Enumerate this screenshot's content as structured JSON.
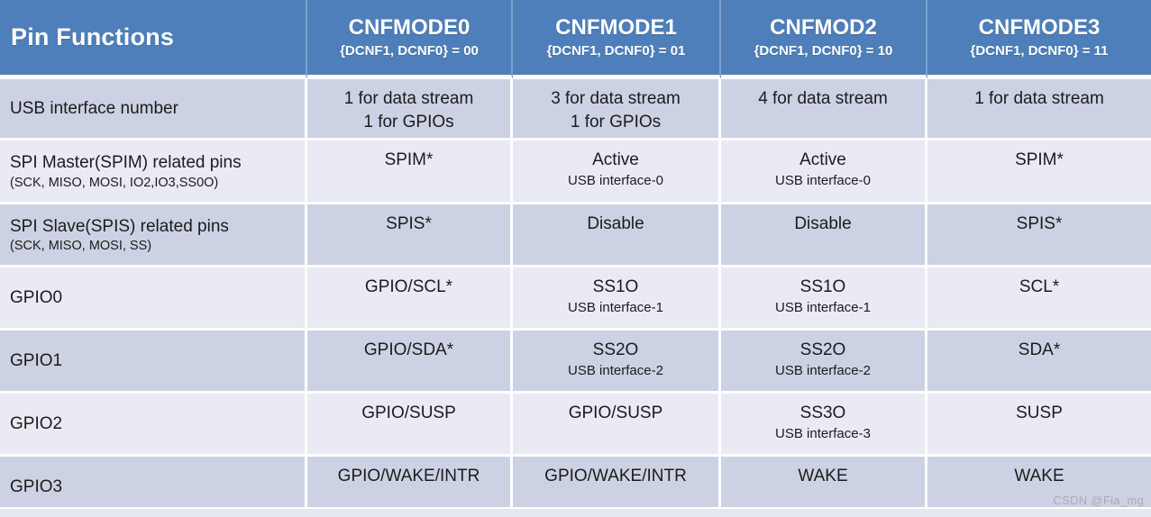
{
  "colors": {
    "header_bg": "#4e7fba",
    "header_text": "#ffffff",
    "header_divider": "#7fa0cc",
    "row_dark": "#ccd2e3",
    "row_light": "#e9eaf3",
    "body_text": "#1c1c1c",
    "separator": "#ffffff",
    "watermark_text": "#a6abb8"
  },
  "header": {
    "title": "Pin Functions",
    "modes": [
      {
        "name": "CNFMODE0",
        "condition": "{DCNF1, DCNF0} = 00"
      },
      {
        "name": "CNFMODE1",
        "condition": "{DCNF1, DCNF0} = 01"
      },
      {
        "name": "CNFMOD2",
        "condition": "{DCNF1, DCNF0} = 10"
      },
      {
        "name": "CNFMODE3",
        "condition": "{DCNF1, DCNF0} = 11"
      }
    ]
  },
  "rows": [
    {
      "label": "USB interface number",
      "cells": [
        {
          "main": "1 for data stream",
          "line2": "1 for GPIOs"
        },
        {
          "main": "3 for data stream",
          "line2": "1 for GPIOs"
        },
        {
          "main": "4 for data stream"
        },
        {
          "main": "1 for data stream"
        }
      ]
    },
    {
      "label": "SPI Master(SPIM) related pins",
      "sublabel": "(SCK, MISO, MOSI, IO2,IO3,SS0O)",
      "cells": [
        {
          "main": "SPIM*"
        },
        {
          "main": "Active",
          "sub": "USB interface-0"
        },
        {
          "main": "Active",
          "sub": "USB interface-0"
        },
        {
          "main": "SPIM*"
        }
      ]
    },
    {
      "label": "SPI Slave(SPIS) related pins",
      "sublabel": "(SCK, MISO, MOSI, SS)",
      "cells": [
        {
          "main": "SPIS*"
        },
        {
          "main": "Disable"
        },
        {
          "main": "Disable"
        },
        {
          "main": "SPIS*"
        }
      ]
    },
    {
      "label": "GPIO0",
      "cells": [
        {
          "main": "GPIO/SCL*"
        },
        {
          "main": "SS1O",
          "sub": "USB interface-1"
        },
        {
          "main": "SS1O",
          "sub": "USB interface-1"
        },
        {
          "main": "SCL*"
        }
      ]
    },
    {
      "label": "GPIO1",
      "cells": [
        {
          "main": "GPIO/SDA*"
        },
        {
          "main": "SS2O",
          "sub": "USB interface-2"
        },
        {
          "main": "SS2O",
          "sub": "USB interface-2"
        },
        {
          "main": "SDA*"
        }
      ]
    },
    {
      "label": "GPIO2",
      "cells": [
        {
          "main": "GPIO/SUSP"
        },
        {
          "main": "GPIO/SUSP"
        },
        {
          "main": "SS3O",
          "sub": "USB interface-3"
        },
        {
          "main": "SUSP"
        }
      ]
    },
    {
      "label": "GPIO3",
      "cells": [
        {
          "main": "GPIO/WAKE/INTR"
        },
        {
          "main": "GPIO/WAKE/INTR"
        },
        {
          "main": "WAKE"
        },
        {
          "main": "WAKE"
        }
      ]
    }
  ],
  "watermark": "CSDN @Fia_mg"
}
